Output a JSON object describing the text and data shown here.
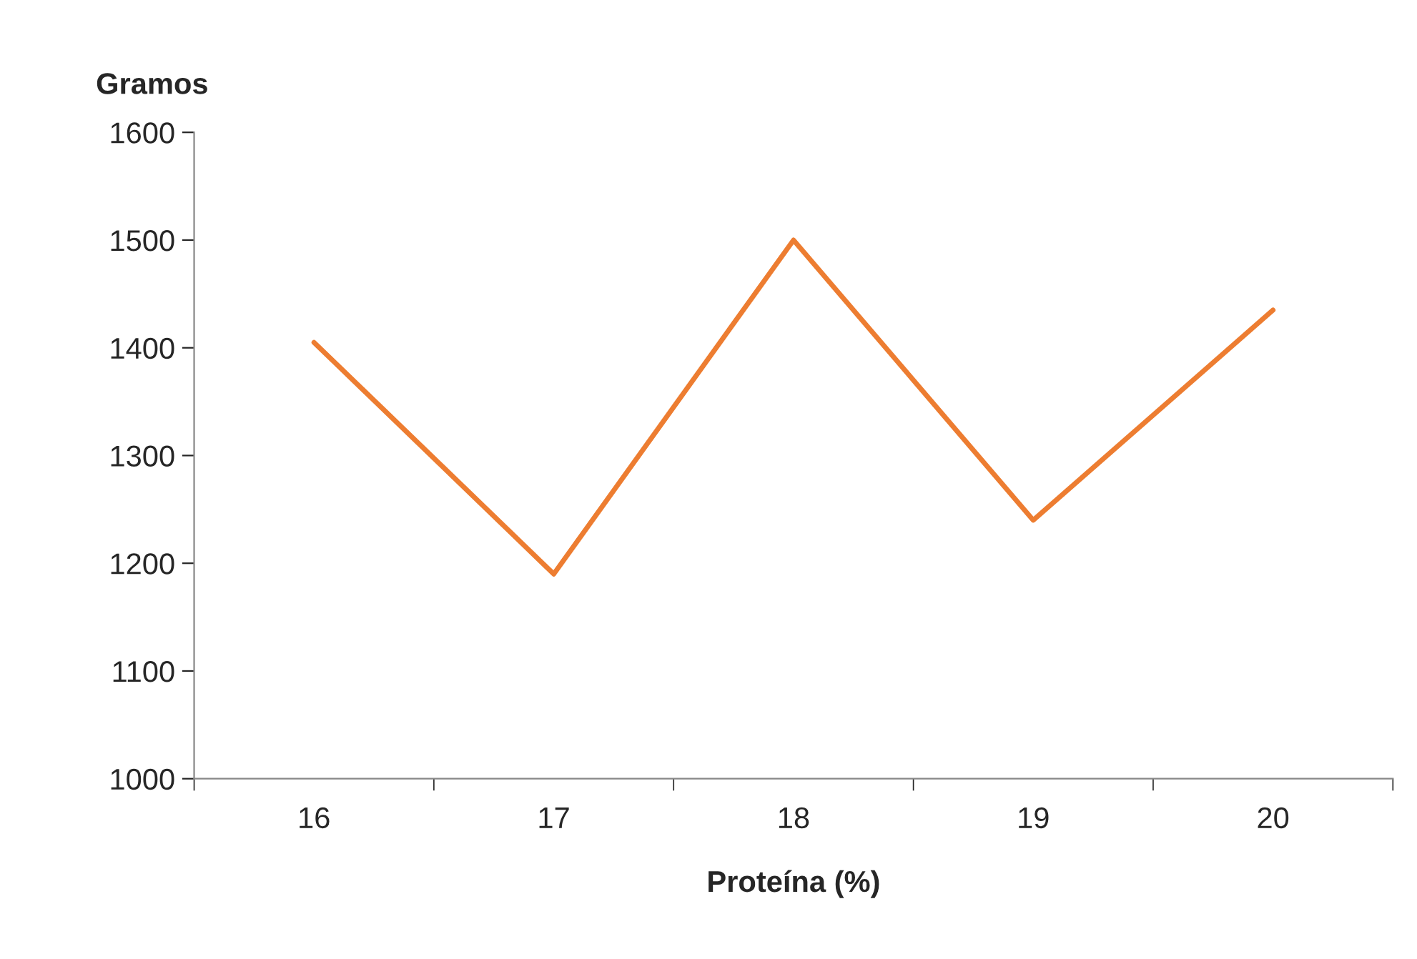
{
  "chart_data": {
    "type": "line",
    "xlabel": "Proteína (%)",
    "ylabel": "Gramos",
    "categories": [
      "16",
      "17",
      "18",
      "19",
      "20"
    ],
    "series": [
      {
        "color": "#ed7d31",
        "values": [
          1405,
          1190,
          1500,
          1240,
          1435
        ]
      }
    ],
    "ylim": [
      1000,
      1600
    ],
    "yticks": [
      1000,
      1100,
      1200,
      1300,
      1400,
      1500,
      1600
    ],
    "grid": false,
    "legend": false,
    "marker": "none",
    "line_style": "solid"
  }
}
